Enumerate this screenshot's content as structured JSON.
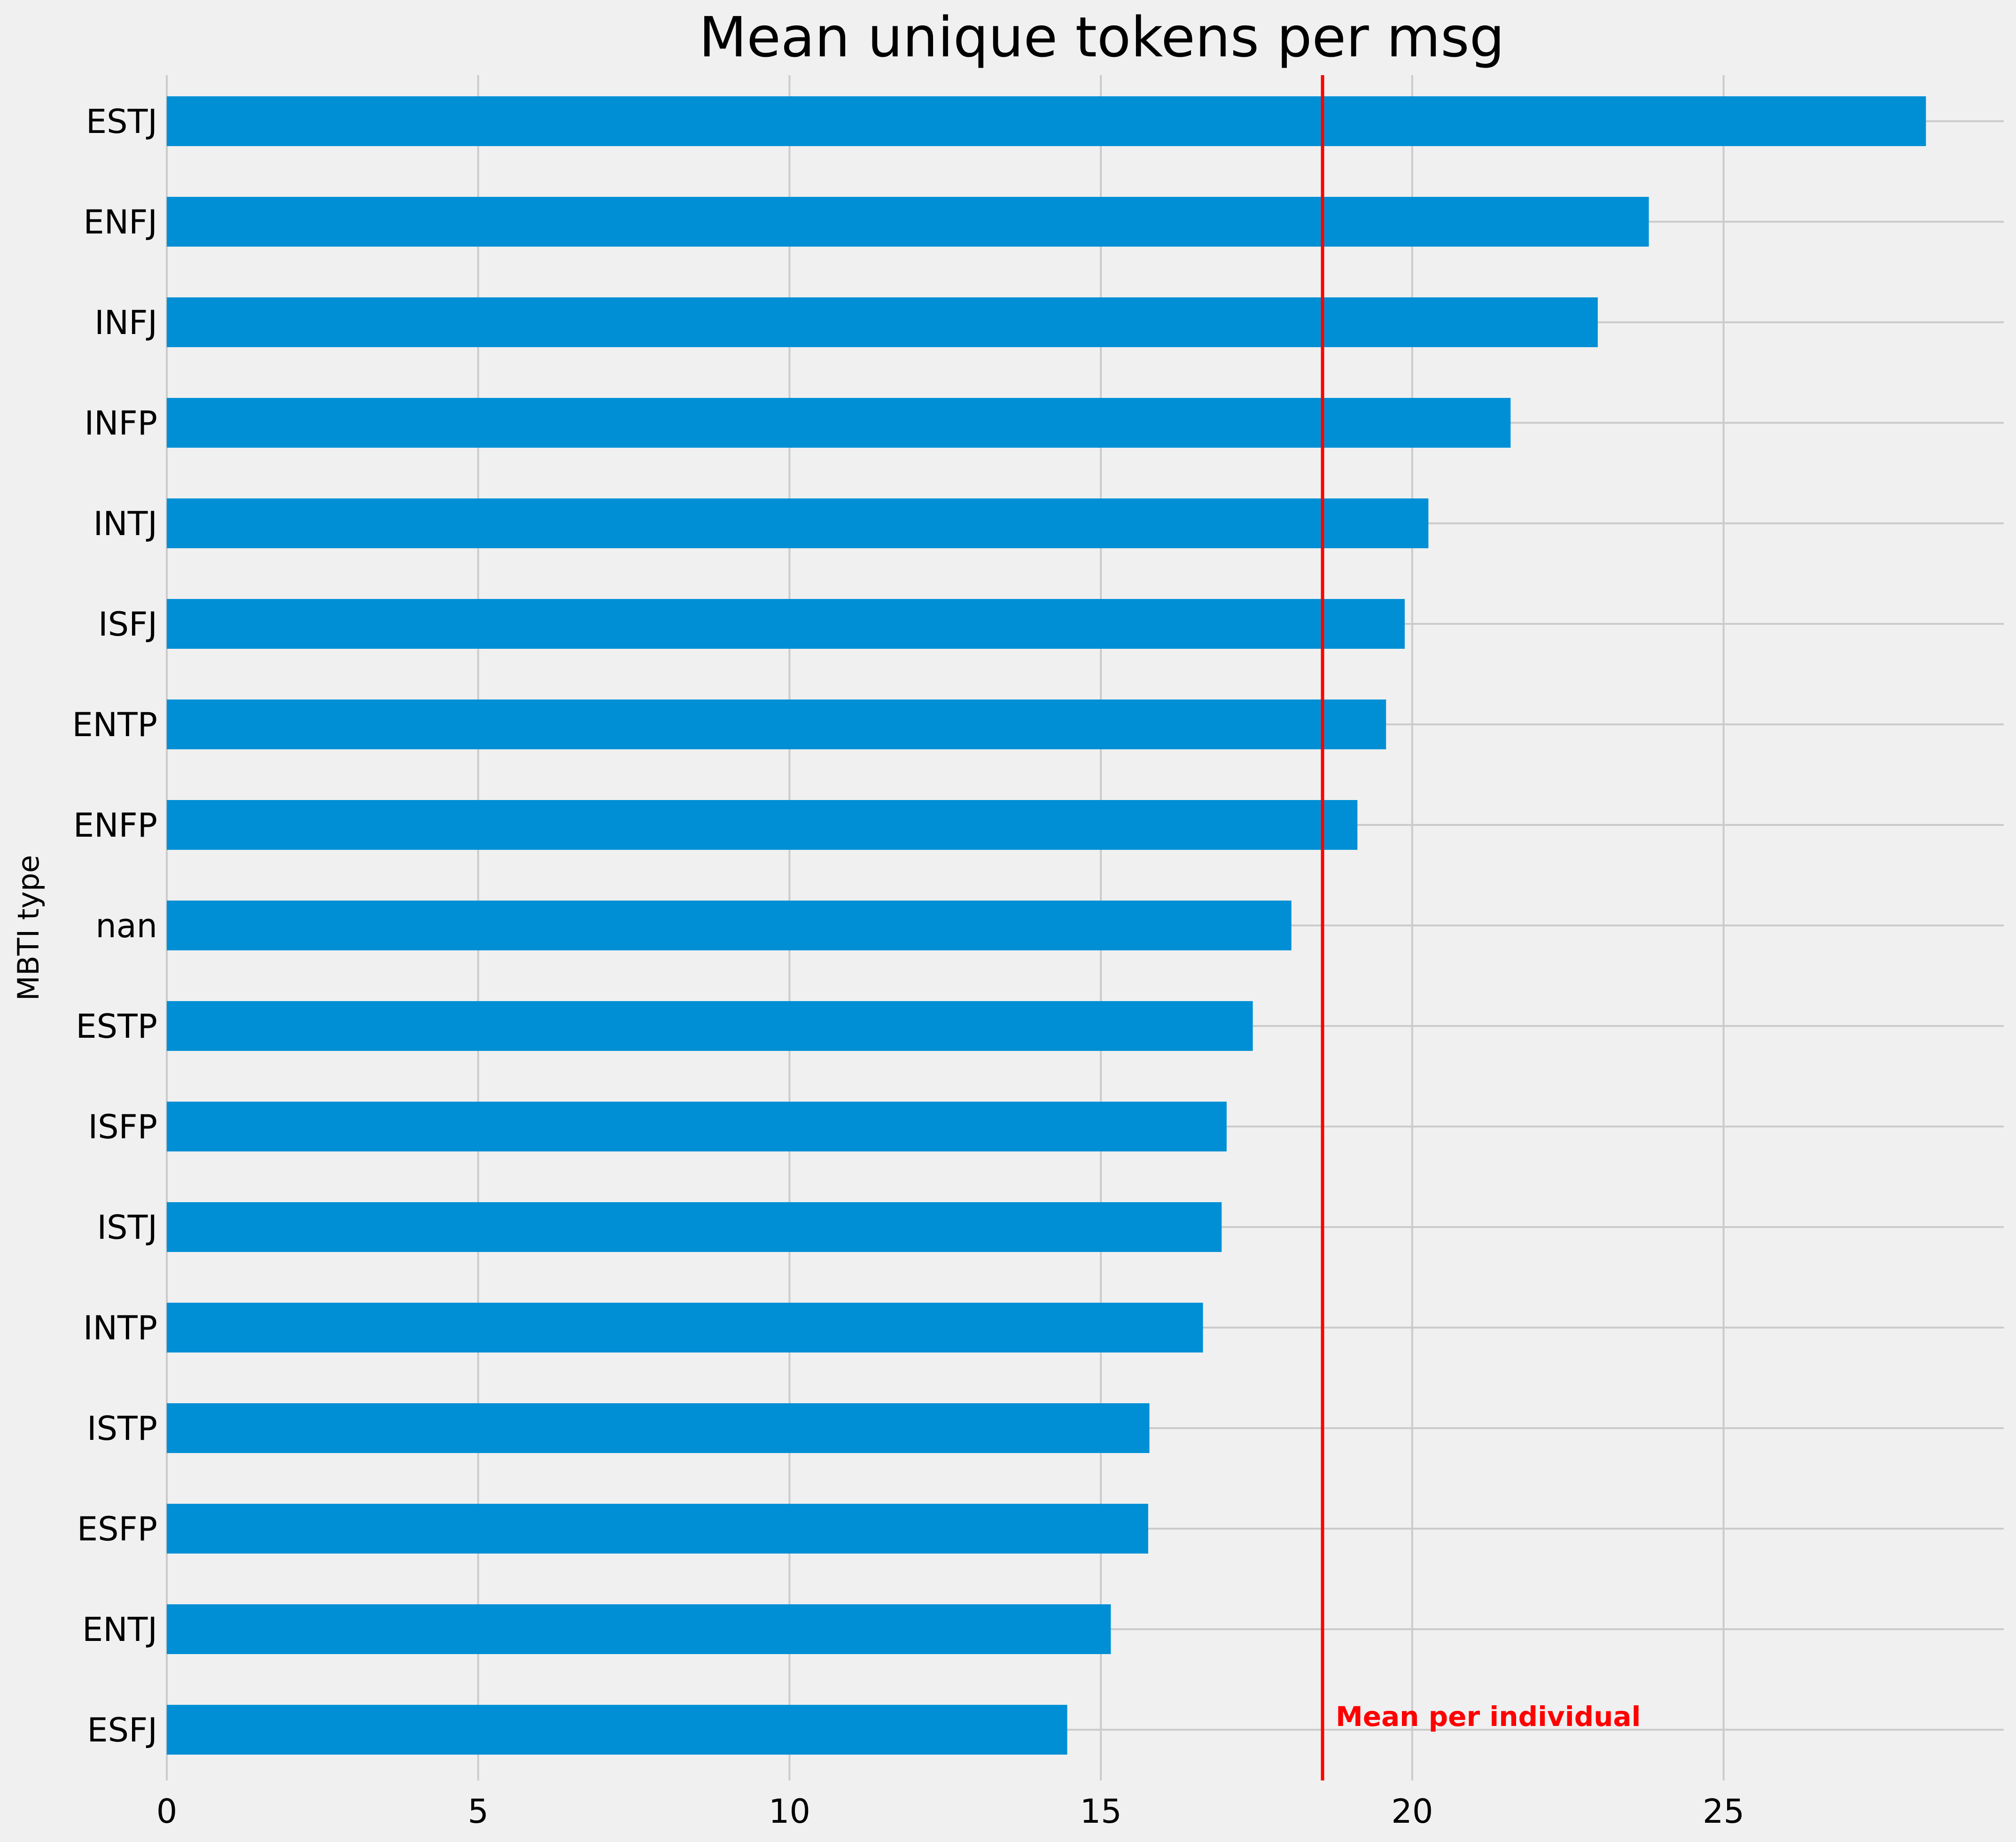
{
  "chart_data": {
    "type": "bar",
    "orientation": "horizontal",
    "title": "Mean unique tokens per msg",
    "xlabel": "",
    "ylabel": "MBTI type",
    "categories": [
      "ESTJ",
      "ENFJ",
      "INFJ",
      "INFP",
      "INTJ",
      "ISFJ",
      "ENTP",
      "ENFP",
      "nan",
      "ESTP",
      "ISFP",
      "ISTJ",
      "INTP",
      "ISTP",
      "ESFP",
      "ENTJ",
      "ESFJ"
    ],
    "values": [
      28.25,
      23.8,
      22.98,
      21.58,
      20.26,
      19.88,
      19.58,
      19.12,
      18.06,
      17.44,
      17.02,
      16.94,
      16.64,
      15.78,
      15.76,
      15.16,
      14.46
    ],
    "xlim": [
      0,
      29.5
    ],
    "xticks": [
      0,
      5,
      10,
      15,
      20,
      25
    ],
    "grid": true,
    "bar_color": "#008fd5",
    "reference_line": {
      "value": 18.56,
      "label": "Mean per individual",
      "color": "#ff0000"
    }
  }
}
